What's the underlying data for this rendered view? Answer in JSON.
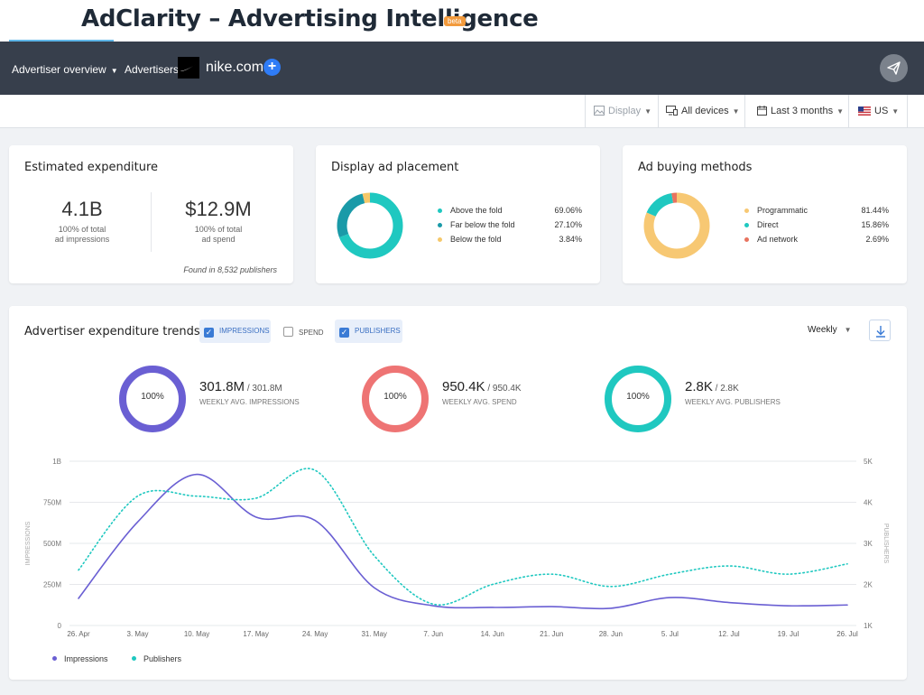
{
  "app": {
    "title": "AdClarity – Advertising Intelligence",
    "badge": "beta"
  },
  "nav": {
    "overview": "Advertiser overview",
    "advertisers_label": "Advertisers:",
    "domain": "nike.com",
    "add": "+"
  },
  "filters": {
    "display": "Display",
    "devices": "All devices",
    "period": "Last 3 months",
    "country": "US"
  },
  "expenditure": {
    "title": "Estimated expenditure",
    "impressions_value": "4.1B",
    "impressions_sub1": "100% of total",
    "impressions_sub2": "ad impressions",
    "spend_value": "$12.9M",
    "spend_sub1": "100% of total",
    "spend_sub2": "ad spend",
    "found": "Found in 8,532 publishers"
  },
  "placement": {
    "title": "Display ad placement",
    "items": [
      {
        "label": "Above the fold",
        "pct": "69.06%",
        "value": 69.06,
        "color": "#1fc8c0"
      },
      {
        "label": "Far below the fold",
        "pct": "27.10%",
        "value": 27.1,
        "color": "#1a9aa8"
      },
      {
        "label": "Below the fold",
        "pct": "3.84%",
        "value": 3.84,
        "color": "#f5c86a"
      }
    ]
  },
  "buying": {
    "title": "Ad buying methods",
    "items": [
      {
        "label": "Programmatic",
        "pct": "81.44%",
        "value": 81.44,
        "color": "#f7c873"
      },
      {
        "label": "Direct",
        "pct": "15.86%",
        "value": 15.86,
        "color": "#1fc8c0"
      },
      {
        "label": "Ad network",
        "pct": "2.69%",
        "value": 2.69,
        "color": "#e8735f"
      }
    ]
  },
  "trends": {
    "title": "Advertiser expenditure trends",
    "toggles": {
      "impressions": "IMPRESSIONS",
      "spend": "SPEND",
      "publishers": "PUBLISHERS"
    },
    "interval": "Weekly",
    "kpis": [
      {
        "ring": "100%",
        "value": "301.8M",
        "total": " / 301.8M",
        "label": "WEEKLY AVG. IMPRESSIONS",
        "color": "#6a5fd3"
      },
      {
        "ring": "100%",
        "value": "950.4K",
        "total": " / 950.4K",
        "label": "WEEKLY AVG. SPEND",
        "color": "#ee7474"
      },
      {
        "ring": "100%",
        "value": "2.8K",
        "total": " / 2.8K",
        "label": "WEEKLY AVG. PUBLISHERS",
        "color": "#1fc8c0"
      }
    ],
    "legend": {
      "impressions": "Impressions",
      "publishers": "Publishers"
    }
  },
  "colors": {
    "impressions": "#6a5fd3",
    "publishers": "#1fc8c0",
    "nav": "#373f4c"
  },
  "chart_data": {
    "type": "line",
    "x": [
      "26. Apr",
      "3. May",
      "10. May",
      "17. May",
      "24. May",
      "31. May",
      "7. Jun",
      "14. Jun",
      "21. Jun",
      "28. Jun",
      "5. Jul",
      "12. Jul",
      "19. Jul",
      "26. Jul"
    ],
    "ylabel": "IMPRESSIONS",
    "y2label": "PUBLISHERS",
    "y_ticks": [
      "0",
      "250M",
      "500M",
      "750M",
      "1B"
    ],
    "y2_ticks": [
      "1K",
      "2K",
      "3K",
      "4K",
      "5K"
    ],
    "ylim": [
      0,
      1000000000
    ],
    "y2lim": [
      1000,
      5000
    ],
    "series": [
      {
        "name": "Impressions",
        "axis": "left",
        "style": "solid",
        "values": [
          165000000,
          630000000,
          920000000,
          660000000,
          640000000,
          230000000,
          120000000,
          110000000,
          115000000,
          105000000,
          170000000,
          140000000,
          120000000,
          125000000
        ]
      },
      {
        "name": "Publishers",
        "axis": "right",
        "style": "dotted",
        "values": [
          2350,
          4150,
          4150,
          4100,
          4780,
          2700,
          1520,
          2000,
          2250,
          1950,
          2250,
          2450,
          2250,
          2500
        ]
      }
    ]
  }
}
